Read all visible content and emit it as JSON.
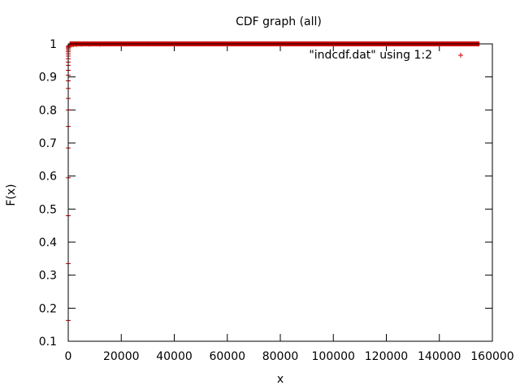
{
  "chart_data": {
    "type": "scatter",
    "title": "CDF graph (all)",
    "xlabel": "x",
    "ylabel": "F(x)",
    "xlim": [
      0,
      160000
    ],
    "ylim": [
      0.1,
      1
    ],
    "xticks": [
      0,
      20000,
      40000,
      60000,
      80000,
      100000,
      120000,
      140000,
      160000
    ],
    "xtick_labels": [
      "0",
      "20000",
      "40000",
      "60000",
      "80000",
      "100000",
      "120000",
      "140000",
      "160000"
    ],
    "yticks": [
      0.1,
      0.2,
      0.3,
      0.4,
      0.5,
      0.6,
      0.7,
      0.8,
      0.9,
      1
    ],
    "ytick_labels": [
      "0.1",
      "0.2",
      "0.3",
      "0.4",
      "0.5",
      "0.6",
      "0.7",
      "0.8",
      "0.9",
      "1"
    ],
    "grid": false,
    "legend_position": "top-right",
    "marker": "+",
    "series": [
      {
        "name": "\"indcdf.dat\" using 1:2",
        "color": "#cc0000",
        "x": [
          0,
          0,
          0,
          0,
          0,
          0,
          0,
          0,
          0,
          0,
          0,
          0,
          0,
          0,
          0,
          0,
          0,
          0,
          0,
          0,
          0,
          0,
          500,
          1000,
          1500,
          2000,
          3000,
          5000,
          8000,
          12000,
          20000,
          30000,
          40000,
          50000,
          60000,
          70000,
          80000,
          90000,
          100000,
          110000,
          120000,
          130000,
          140000,
          150000,
          155000
        ],
        "y": [
          0.163,
          0.335,
          0.48,
          0.595,
          0.685,
          0.75,
          0.8,
          0.835,
          0.865,
          0.888,
          0.905,
          0.92,
          0.935,
          0.945,
          0.955,
          0.963,
          0.97,
          0.976,
          0.981,
          0.986,
          0.99,
          0.993,
          0.995,
          0.996,
          0.997,
          0.998,
          0.998,
          0.999,
          0.999,
          0.999,
          0.9995,
          0.9996,
          0.9997,
          0.9998,
          0.9998,
          0.9999,
          0.9999,
          0.9999,
          1,
          1,
          1,
          1,
          1,
          1,
          1
        ]
      }
    ]
  }
}
